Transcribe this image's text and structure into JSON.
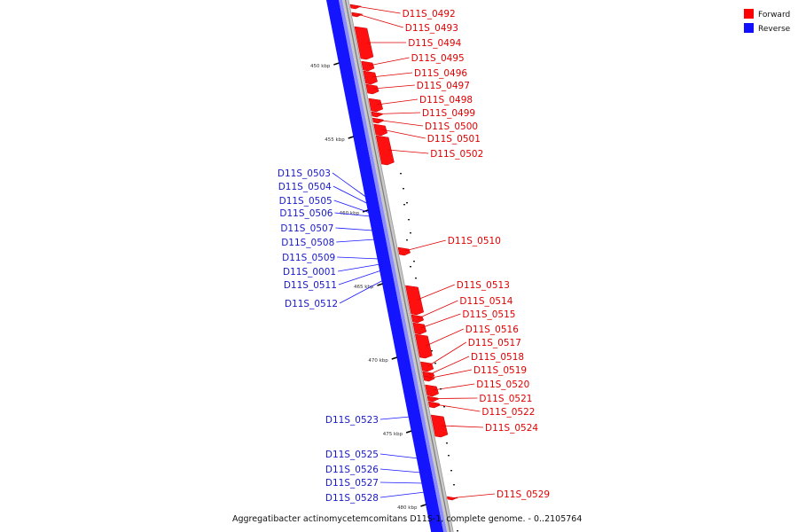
{
  "legend": [
    {
      "label": "Forward",
      "color": "#ff0000"
    },
    {
      "label": "Reverse",
      "color": "#1010ff"
    }
  ],
  "caption": "Aggregatibacter actinomycetemcomitans D11S-1, complete genome. - 0..2105764",
  "scale_unit": "kbp",
  "ticks": [
    "450 kbp",
    "455 kbp",
    "460 kbp",
    "465 kbp",
    "470 kbp",
    "475 kbp",
    "480 kbp"
  ],
  "forward_genes": [
    "D11S_0492",
    "D11S_0493",
    "D11S_0494",
    "D11S_0495",
    "D11S_0496",
    "D11S_0497",
    "D11S_0498",
    "D11S_0499",
    "D11S_0500",
    "D11S_0501",
    "D11S_0502",
    "D11S_0510",
    "D11S_0513",
    "D11S_0514",
    "D11S_0515",
    "D11S_0516",
    "D11S_0517",
    "D11S_0518",
    "D11S_0519",
    "D11S_0520",
    "D11S_0521",
    "D11S_0522",
    "D11S_0524",
    "D11S_0529"
  ],
  "reverse_genes": [
    "D11S_0503",
    "D11S_0504",
    "D11S_0505",
    "D11S_0506",
    "D11S_0507",
    "D11S_0508",
    "D11S_0509",
    "D11S_0001",
    "D11S_0511",
    "D11S_0512",
    "D11S_0523",
    "D11S_0525",
    "D11S_0526",
    "D11S_0527",
    "D11S_0528"
  ]
}
